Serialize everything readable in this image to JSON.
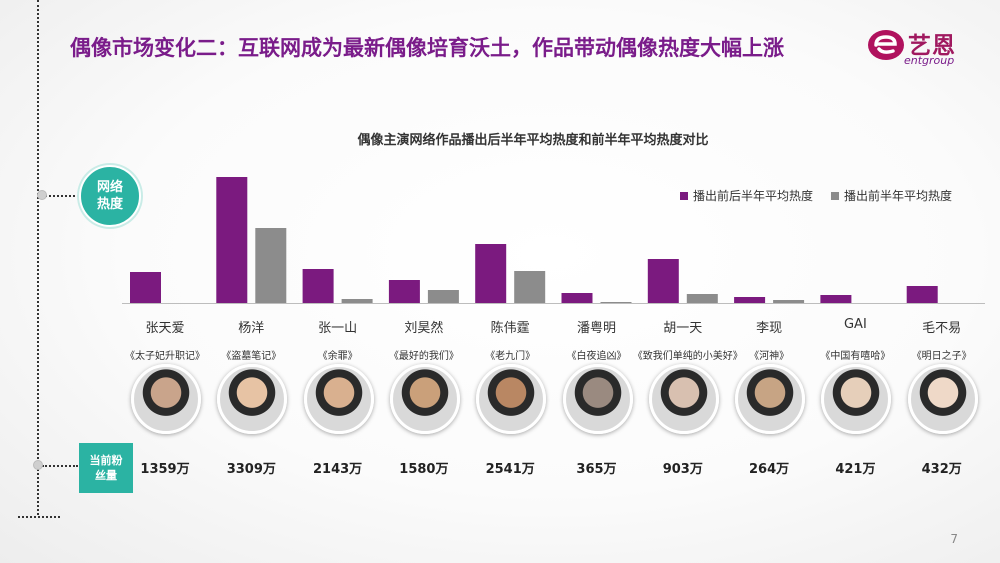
{
  "title": "偶像市场变化二：互联网成为最新偶像培育沃土，作品带动偶像热度大幅上涨",
  "logo": {
    "cn": "艺恩",
    "en": "entgroup"
  },
  "labels": {
    "heat": "网络热度",
    "fans": "当前粉丝量"
  },
  "page_number": "7",
  "colors": {
    "primary": "#7b1a7f",
    "secondary": "#8c8c8c",
    "accent": "#2bb3a3"
  },
  "chart_data": {
    "type": "bar",
    "title": "偶像主演网络作品播出后半年平均热度和前半年平均热度对比",
    "legend_position": "top-right",
    "categories": [
      "张天爱",
      "杨洋",
      "张一山",
      "刘昊然",
      "陈伟霆",
      "潘粤明",
      "胡一天",
      "李现",
      "GAI",
      "毛不易"
    ],
    "series": [
      {
        "name": "播出前后半年平均热度",
        "values": [
          31,
          126,
          34,
          23,
          59,
          10,
          44,
          6,
          8,
          17
        ]
      },
      {
        "name": "播出前半年平均热度",
        "values": [
          0,
          75,
          4,
          13,
          32,
          1,
          9,
          3,
          0,
          0
        ]
      }
    ],
    "ylim": [
      0,
      130
    ],
    "works": [
      "《太子妃升职记》",
      "《盗墓笔记》",
      "《余罪》",
      "《最好的我们》",
      "《老九门》",
      "《白夜追凶》",
      "《致我们单纯的小美好》",
      "《河神》",
      "《中国有嘻哈》",
      "《明日之子》"
    ],
    "fans": [
      "1359万",
      "3309万",
      "2143万",
      "1580万",
      "2541万",
      "365万",
      "903万",
      "264万",
      "421万",
      "432万"
    ]
  }
}
